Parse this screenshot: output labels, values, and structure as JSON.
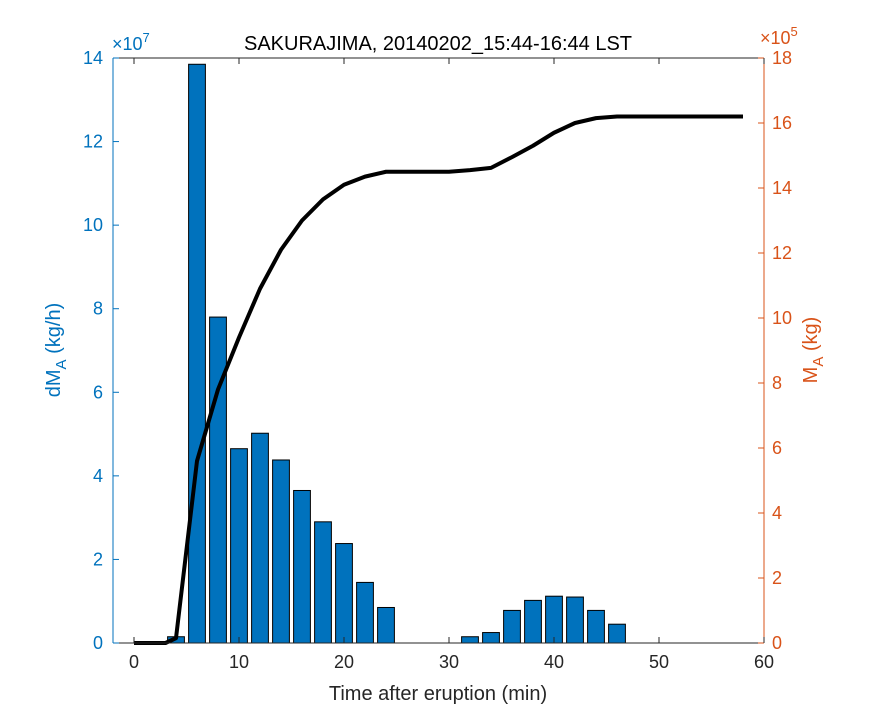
{
  "chart_data": {
    "type": "bar",
    "title": "SAKURAJIMA, 20140202_15:44-16:44 LST",
    "xlabel": "Time after eruption (min)",
    "ylabel_left_main": "dM",
    "ylabel_left_sub": "A",
    "ylabel_left_unit": " (kg/h)",
    "ylabel_right_main": "M",
    "ylabel_right_sub": "A",
    "ylabel_right_unit": " (kg)",
    "left_exponent_base": "×10",
    "left_exponent_power": "7",
    "right_exponent_base": "×10",
    "right_exponent_power": "5",
    "xlim": [
      -2,
      60
    ],
    "ylim_left": [
      0,
      14
    ],
    "ylim_right": [
      0,
      18
    ],
    "xticks": [
      0,
      10,
      20,
      30,
      40,
      50,
      60
    ],
    "yticks_left": [
      0,
      2,
      4,
      6,
      8,
      10,
      12,
      14
    ],
    "yticks_right": [
      0,
      2,
      4,
      6,
      8,
      10,
      12,
      14,
      16,
      18
    ],
    "colors": {
      "bar": "#0072BD",
      "line": "#000000",
      "left_axis": "#0072BD",
      "right_axis": "#D95319"
    },
    "bars": {
      "name": "dMA (x10^7 kg/h)",
      "x": [
        0,
        2,
        4,
        6,
        8,
        10,
        12,
        14,
        16,
        18,
        20,
        22,
        24,
        26,
        28,
        30,
        32,
        34,
        36,
        38,
        40,
        42,
        44,
        46
      ],
      "values": [
        0,
        0,
        0.15,
        13.85,
        7.8,
        4.65,
        5.02,
        4.38,
        3.65,
        2.9,
        2.38,
        1.45,
        0.85,
        0,
        0,
        0,
        0.15,
        0.25,
        0.78,
        1.02,
        1.12,
        1.1,
        0.78,
        0.45
      ]
    },
    "line": {
      "name": "MA (x10^5 kg)",
      "x": [
        0,
        3,
        4,
        6,
        8,
        10,
        12,
        14,
        16,
        18,
        20,
        22,
        24,
        26,
        28,
        30,
        32,
        34,
        36,
        38,
        40,
        42,
        44,
        46,
        48,
        50,
        52,
        54,
        56,
        58
      ],
      "values": [
        0,
        0,
        0.15,
        5.6,
        7.8,
        9.4,
        10.9,
        12.1,
        13.0,
        13.65,
        14.1,
        14.35,
        14.5,
        14.5,
        14.5,
        14.5,
        14.55,
        14.62,
        14.95,
        15.3,
        15.7,
        16.0,
        16.15,
        16.2,
        16.2,
        16.2,
        16.2,
        16.2,
        16.2,
        16.2
      ]
    }
  }
}
